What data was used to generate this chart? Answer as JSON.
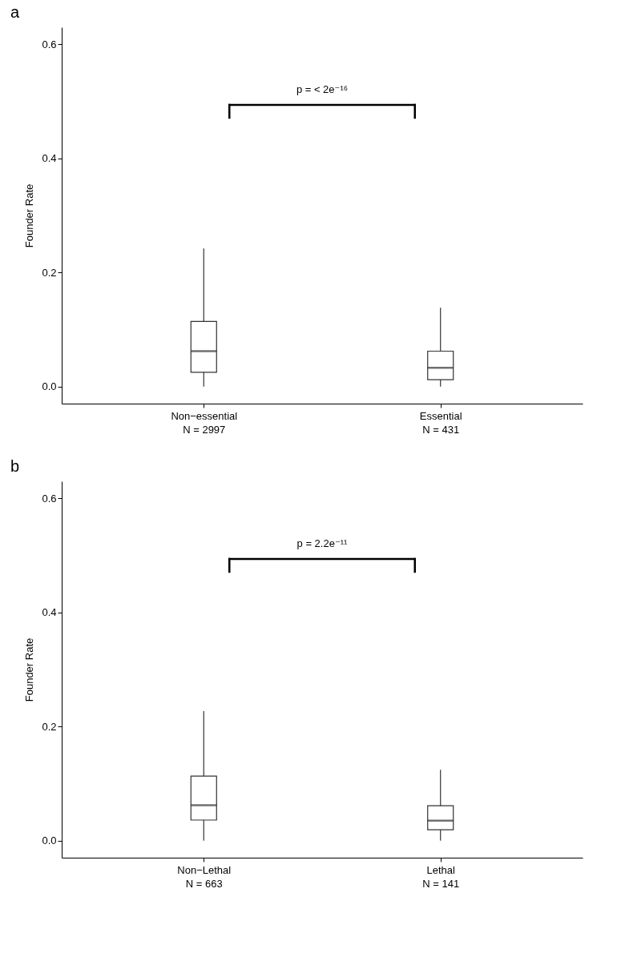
{
  "chart_data": [
    {
      "type": "box",
      "title": "a",
      "ylabel": "Founder Rate",
      "categories": [
        "Non−essential\nN = 2997",
        "Essential\nN = 431"
      ],
      "boxes": [
        {
          "low": 0,
          "q1": 0.025,
          "median": 0.062,
          "q3": 0.114,
          "high": 0.242
        },
        {
          "low": 0,
          "q1": 0.012,
          "median": 0.033,
          "q3": 0.062,
          "high": 0.138
        }
      ],
      "ylim": [
        -0.03,
        0.63
      ],
      "yticks": [
        {
          "value": 0,
          "label": "0.0"
        },
        {
          "value": 0.2,
          "label": "0.2"
        },
        {
          "value": 0.4,
          "label": "0.4"
        },
        {
          "value": 0.6,
          "label": "0.6"
        }
      ],
      "annotations": [
        "p = < 2e⁻¹⁶"
      ]
    },
    {
      "type": "box",
      "title": "b",
      "ylabel": "Founder Rate",
      "categories": [
        "Non−Lethal\nN = 663",
        "Lethal\nN = 141"
      ],
      "boxes": [
        {
          "low": 0,
          "q1": 0.036,
          "median": 0.062,
          "q3": 0.113,
          "high": 0.227
        },
        {
          "low": 0,
          "q1": 0.019,
          "median": 0.035,
          "q3": 0.061,
          "high": 0.124
        }
      ],
      "ylim": [
        -0.03,
        0.63
      ],
      "yticks": [
        {
          "value": 0,
          "label": "0.0"
        },
        {
          "value": 0.2,
          "label": "0.2"
        },
        {
          "value": 0.4,
          "label": "0.4"
        },
        {
          "value": 0.6,
          "label": "0.6"
        }
      ],
      "annotations": [
        "p = 2.2e⁻¹¹"
      ]
    }
  ]
}
